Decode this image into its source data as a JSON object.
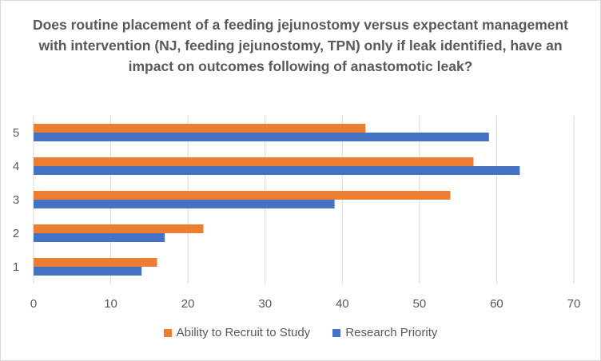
{
  "chart_data": {
    "type": "bar",
    "orientation": "horizontal",
    "title": "Does routine placement of a feeding jejunostomy versus expectant management with intervention (NJ, feeding jejunostomy, TPN) only if leak identified, have an impact on outcomes following of anastomotic leak?",
    "categories": [
      "1",
      "2",
      "3",
      "4",
      "5"
    ],
    "series": [
      {
        "name": "Ability to Recruit to Study",
        "color": "#ED7D31",
        "values": [
          16,
          22,
          54,
          57,
          43
        ]
      },
      {
        "name": "Research Priority",
        "color": "#4472C4",
        "values": [
          14,
          17,
          39,
          63,
          59
        ]
      }
    ],
    "xlim": [
      0,
      70
    ],
    "xticks": [
      "0",
      "10",
      "20",
      "30",
      "40",
      "50",
      "60",
      "70"
    ],
    "grid": "vertical",
    "legend": "bottom"
  }
}
